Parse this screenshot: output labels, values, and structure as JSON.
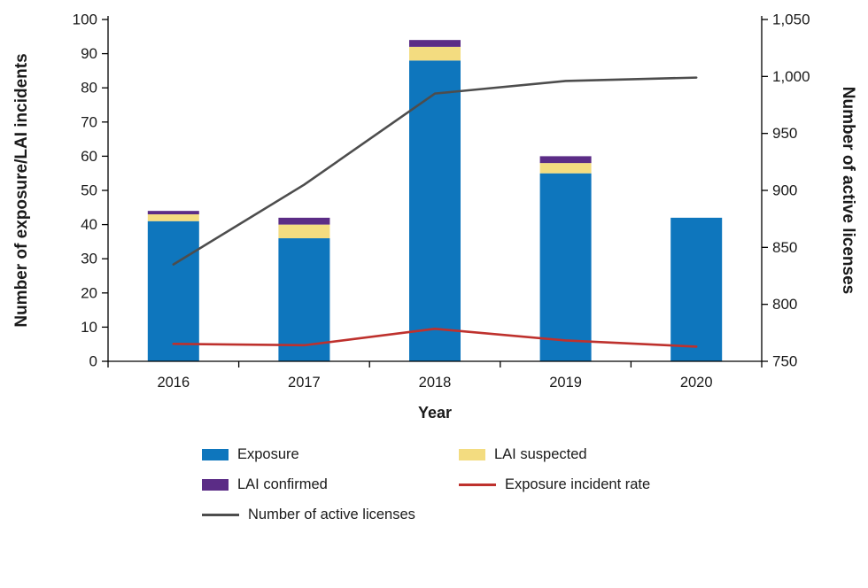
{
  "chart_data": {
    "type": "bar",
    "title": "",
    "categories": [
      "2016",
      "2017",
      "2018",
      "2019",
      "2020"
    ],
    "xlabel": "Year",
    "grid": false,
    "legend_position": "bottom",
    "left_axis": {
      "label": "Number of exposure/LAI incidents",
      "min": 0,
      "max": 100,
      "step": 10,
      "ticks": [
        0,
        10,
        20,
        30,
        40,
        50,
        60,
        70,
        80,
        90,
        100
      ],
      "tick_labels": [
        "0",
        "10",
        "20",
        "30",
        "40",
        "50",
        "60",
        "70",
        "80",
        "90",
        "100"
      ]
    },
    "right_axis": {
      "label": "Number of active licenses",
      "min": 750,
      "max": 1050,
      "step": 50,
      "ticks": [
        750,
        800,
        850,
        900,
        950,
        1000,
        1050
      ],
      "tick_labels": [
        "750",
        "800",
        "850",
        "900",
        "950",
        "1,000",
        "1,050"
      ]
    },
    "bar_series": [
      {
        "name": "Exposure",
        "color": "#0E76BD",
        "values": [
          41,
          36,
          88,
          55,
          42
        ]
      },
      {
        "name": "LAI suspected",
        "color": "#F3DC80",
        "values": [
          2,
          4,
          4,
          3,
          0
        ]
      },
      {
        "name": "LAI confirmed",
        "color": "#5B2C86",
        "values": [
          1,
          2,
          2,
          2,
          0
        ]
      }
    ],
    "line_series": [
      {
        "name": "Exposure incident rate",
        "color": "#BE312D",
        "axis": "left",
        "values": [
          5.1,
          4.7,
          9.5,
          6.1,
          4.3
        ]
      },
      {
        "name": "Number of active licenses",
        "color": "#4D4D4D",
        "axis": "right",
        "values": [
          835,
          905,
          985,
          996,
          999
        ]
      }
    ]
  },
  "legend": {
    "items": [
      {
        "label": "Exposure",
        "series": "Exposure",
        "swatch": "rect"
      },
      {
        "label": "LAI suspected",
        "series": "LAI suspected",
        "swatch": "rect"
      },
      {
        "label": "LAI confirmed",
        "series": "LAI confirmed",
        "swatch": "rect"
      },
      {
        "label": "Exposure incident rate",
        "series": "Exposure incident rate",
        "swatch": "line"
      },
      {
        "label": "Number of active licenses",
        "series": "Number of active licenses",
        "swatch": "line"
      }
    ]
  },
  "colors": {
    "axis": "#000000",
    "text": "#1a1a1a",
    "background": "#ffffff"
  }
}
